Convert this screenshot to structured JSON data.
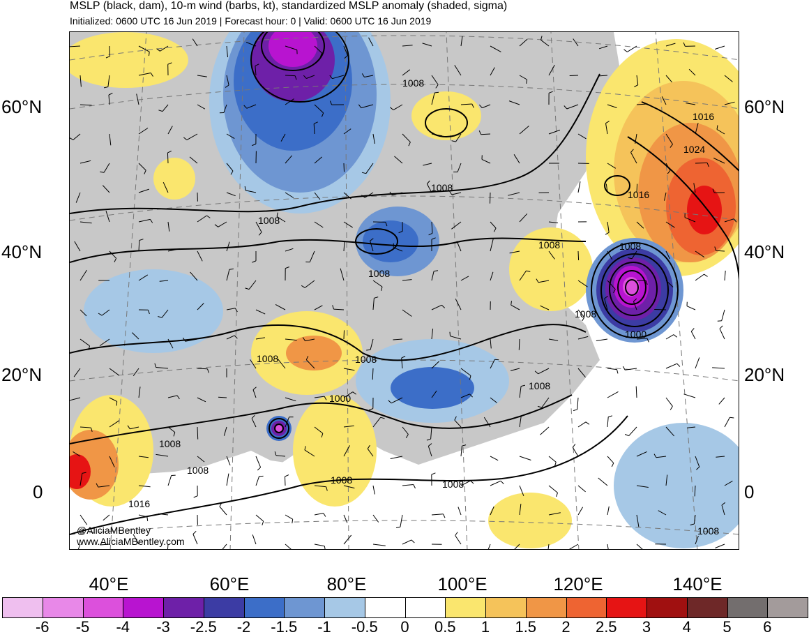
{
  "header": {
    "title": "MSLP (black, dam), 10-m wind (barbs, kt), standardized MSLP anomaly (shaded, sigma)",
    "subtitle": "Initialized: 0600 UTC 16 Jun 2019 | Forecast hour: 0 | Valid: 0600 UTC 16 Jun 2019"
  },
  "map": {
    "lat_labels": [
      "60°N",
      "40°N",
      "20°N",
      "0"
    ],
    "lon_labels": [
      "40°E",
      "60°E",
      "80°E",
      "100°E",
      "120°E",
      "140°E"
    ],
    "contour_labels": [
      "1008",
      "1016",
      "1024",
      "1016",
      "1008",
      "1008",
      "1008",
      "1008",
      "1008",
      "1008",
      "1000",
      "1008",
      "1008",
      "1008",
      "1000",
      "1008",
      "1016",
      "1008",
      "1008",
      "1008"
    ],
    "credit_line1": "@AliciaMBentley",
    "credit_line2": "www.AliciaMBentley.com",
    "colors": {
      "land": "#c8c8c8",
      "ocean": "#ffffff",
      "border": "#505050"
    }
  },
  "colorbar": {
    "colors": [
      "#efbfef",
      "#e888e8",
      "#dc50dc",
      "#b814d0",
      "#6e20a8",
      "#3c3ca4",
      "#3c6ec8",
      "#6e96d2",
      "#a6c8e6",
      "#ffffff",
      "#ffffff",
      "#fae66e",
      "#f5c35a",
      "#f09646",
      "#ee6432",
      "#e61414",
      "#a01010",
      "#6e2828",
      "#736e6e",
      "#a39b9b"
    ],
    "labels": [
      "-6",
      "-5",
      "-4",
      "-3",
      "-2.5",
      "-2",
      "-1.5",
      "-1",
      "-0.5",
      "0",
      "0.5",
      "1",
      "1.5",
      "2",
      "2.5",
      "3",
      "4",
      "5",
      "6"
    ]
  }
}
